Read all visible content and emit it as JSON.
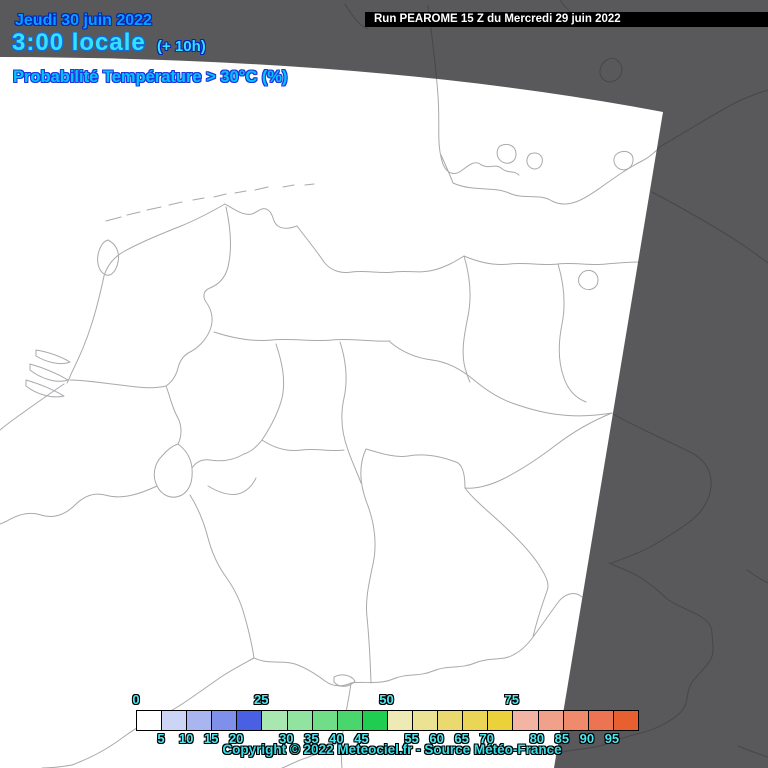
{
  "header": {
    "date": "Jeudi 30 juin 2022",
    "time": "3:00 locale",
    "utc_offset": "(+ 10h)",
    "run_banner": "Run PEAROME 15 Z du Mercredi 29 juin 2022",
    "variable_label": "Probabilité Température > 30°C (%)"
  },
  "footer": {
    "copyright": "Copyright © 2022 Meteociel.fr - Source Météo-France"
  },
  "colorbar": {
    "tick_labels": [
      "0",
      "5",
      "10",
      "15",
      "20",
      "25",
      "30",
      "35",
      "40",
      "45",
      "50",
      "55",
      "60",
      "65",
      "70",
      "75",
      "80",
      "85",
      "90",
      "95"
    ],
    "cell_colors": [
      "#ffffff",
      "#cdd5f6",
      "#a9b5f0",
      "#7e90ea",
      "#4a60e4",
      "#a9e7b0",
      "#91e3a0",
      "#70dd89",
      "#49d66c",
      "#1fce50",
      "#eeeab6",
      "#ebe393",
      "#ead96f",
      "#ebd556",
      "#ecd23a",
      "#f3b4a4",
      "#f1a18a",
      "#ef8a6c",
      "#ed7452",
      "#e8602f"
    ],
    "label_color": "#4de9f2"
  },
  "map": {
    "background_color": "#59595b",
    "domain_fill": "#ffffff",
    "line_color_inside_domain": "#a9a9ad",
    "line_color_outside_domain": "#47474b"
  }
}
